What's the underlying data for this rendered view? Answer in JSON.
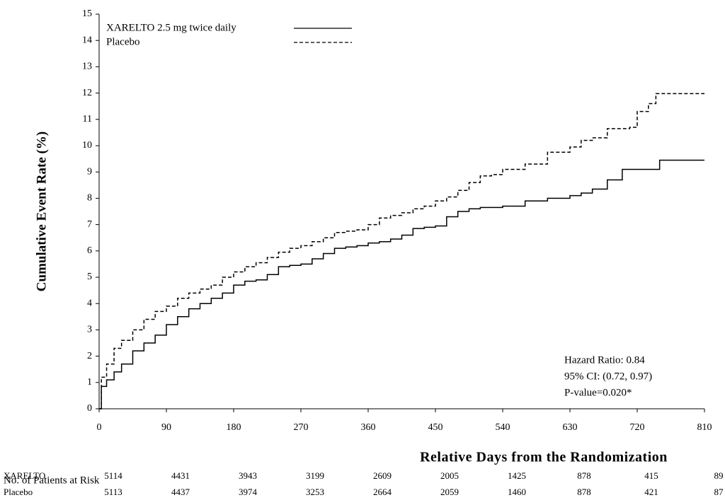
{
  "chart_data": {
    "type": "line",
    "step": true,
    "ylabel": "Cumulative Event Rate (%)",
    "xlabel": "Relative Days from the Randomization",
    "x": [
      0,
      3,
      10,
      20,
      30,
      45,
      60,
      75,
      90,
      105,
      120,
      135,
      150,
      165,
      180,
      195,
      210,
      225,
      240,
      255,
      270,
      285,
      300,
      315,
      330,
      345,
      360,
      375,
      390,
      405,
      420,
      435,
      450,
      465,
      480,
      495,
      510,
      525,
      540,
      570,
      600,
      630,
      645,
      660,
      680,
      700,
      710,
      720,
      735,
      745,
      750,
      810
    ],
    "series": [
      {
        "name": "XARELTO 2.5 mg twice daily",
        "color": "#000000",
        "dash": false,
        "values": [
          0,
          0.85,
          1.1,
          1.4,
          1.7,
          2.2,
          2.5,
          2.8,
          3.2,
          3.5,
          3.8,
          4.0,
          4.2,
          4.4,
          4.7,
          4.85,
          4.9,
          5.1,
          5.4,
          5.45,
          5.5,
          5.7,
          5.9,
          6.1,
          6.15,
          6.2,
          6.3,
          6.35,
          6.45,
          6.6,
          6.85,
          6.9,
          6.95,
          7.3,
          7.5,
          7.6,
          7.65,
          7.65,
          7.7,
          7.9,
          8.0,
          8.1,
          8.2,
          8.35,
          8.7,
          9.1,
          9.1,
          9.1,
          9.1,
          9.1,
          9.45,
          9.45
        ]
      },
      {
        "name": "Placebo",
        "color": "#000000",
        "dash": true,
        "values": [
          0,
          1.2,
          1.7,
          2.3,
          2.6,
          3.0,
          3.4,
          3.7,
          3.9,
          4.2,
          4.4,
          4.55,
          4.7,
          5.0,
          5.2,
          5.4,
          5.55,
          5.75,
          5.95,
          6.1,
          6.2,
          6.35,
          6.5,
          6.7,
          6.75,
          6.8,
          7.0,
          7.25,
          7.35,
          7.45,
          7.6,
          7.7,
          7.9,
          8.05,
          8.3,
          8.6,
          8.85,
          8.9,
          9.1,
          9.3,
          9.75,
          9.95,
          10.2,
          10.3,
          10.65,
          10.65,
          10.7,
          11.3,
          11.6,
          11.98,
          11.98,
          11.98
        ]
      }
    ],
    "xlim": [
      0,
      810
    ],
    "xticks": [
      0,
      90,
      180,
      270,
      360,
      450,
      540,
      630,
      720,
      810
    ],
    "ylim": [
      0,
      15
    ],
    "yticks": [
      0,
      1,
      2,
      3,
      4,
      5,
      6,
      7,
      8,
      9,
      10,
      11,
      12,
      13,
      14,
      15
    ],
    "legend": "top-left",
    "annotations": [
      "Hazard Ratio: 0.84",
      "95% CI:  (0.72, 0.97)",
      "P-value=0.020*"
    ],
    "risk_table": {
      "title": "No. of Patients at Risk",
      "rows": [
        {
          "name": "XARELTO",
          "values": [
            5114,
            4431,
            3943,
            3199,
            2609,
            2005,
            1425,
            878,
            415,
            89
          ]
        },
        {
          "name": "Placebo",
          "values": [
            5113,
            4437,
            3974,
            3253,
            2664,
            2059,
            1460,
            878,
            421,
            87
          ]
        }
      ]
    }
  }
}
